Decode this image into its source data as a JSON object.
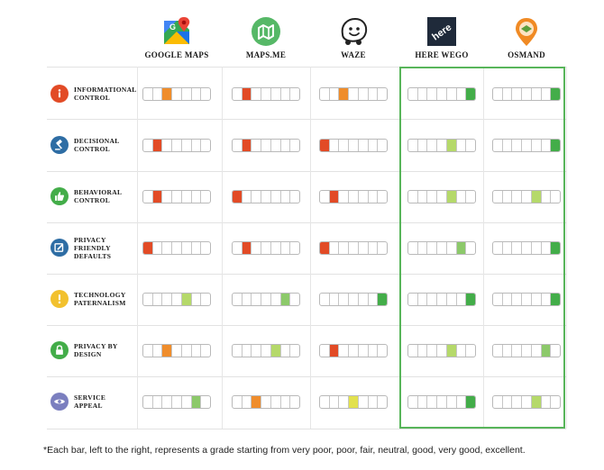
{
  "apps": [
    {
      "name": "GOOGLE MAPS",
      "icon": "google-maps-logo-icon"
    },
    {
      "name": "MAPS.ME",
      "icon": "maps-me-logo-icon"
    },
    {
      "name": "WAZE",
      "icon": "waze-logo-icon"
    },
    {
      "name": "HERE WEGO",
      "icon": "here-wego-logo-icon",
      "logo_text": "here"
    },
    {
      "name": "OSMAND",
      "icon": "osmand-logo-icon"
    }
  ],
  "grade_scale": [
    "very poor",
    "poor",
    "fair",
    "neutral",
    "good",
    "very good",
    "excellent"
  ],
  "grade_colors": [
    "#e24b26",
    "#e24b26",
    "#ef8d2c",
    "#e2e14e",
    "#b5d96a",
    "#8cc96a",
    "#43ad49"
  ],
  "criteria": [
    {
      "label": [
        "INFORMATIONAL",
        "CONTROL"
      ],
      "icon": "info-icon",
      "icon_color": "#e24b26",
      "grades": [
        3,
        2,
        3,
        7,
        7
      ]
    },
    {
      "label": [
        "DECISIONAL",
        "CONTROL"
      ],
      "icon": "gavel-icon",
      "icon_color": "#2e6da4",
      "grades": [
        2,
        2,
        1,
        5,
        7
      ]
    },
    {
      "label": [
        "BEHAVIORAL",
        "CONTROL"
      ],
      "icon": "thumbs-up-icon",
      "icon_color": "#43ad49",
      "grades": [
        2,
        1,
        2,
        5,
        5
      ]
    },
    {
      "label": [
        "PRIVACY",
        "FRIENDLY",
        "DEFAULTS"
      ],
      "icon": "checkbox-edit-icon",
      "icon_color": "#2e6da4",
      "grades": [
        1,
        2,
        1,
        6,
        7
      ]
    },
    {
      "label": [
        "TECHNOLOGY",
        "PATERNALISM"
      ],
      "icon": "exclamation-icon",
      "icon_color": "#f2c12e",
      "grades": [
        5,
        6,
        7,
        7,
        7
      ]
    },
    {
      "label": [
        "PRIVACY BY",
        "DESIGN"
      ],
      "icon": "lock-icon",
      "icon_color": "#43ad49",
      "grades": [
        3,
        5,
        2,
        5,
        6
      ]
    },
    {
      "label": [
        "SERVICE",
        "APPEAL"
      ],
      "icon": "eye-icon",
      "icon_color": "#7b7fbf",
      "grades": [
        6,
        3,
        4,
        7,
        5
      ]
    }
  ],
  "highlighted_apps": [
    "HERE WEGO",
    "OSMAND"
  ],
  "footnote": "*Each bar, left to the right, represents a grade starting from very poor, poor, fair, neutral, good, very good, excellent."
}
